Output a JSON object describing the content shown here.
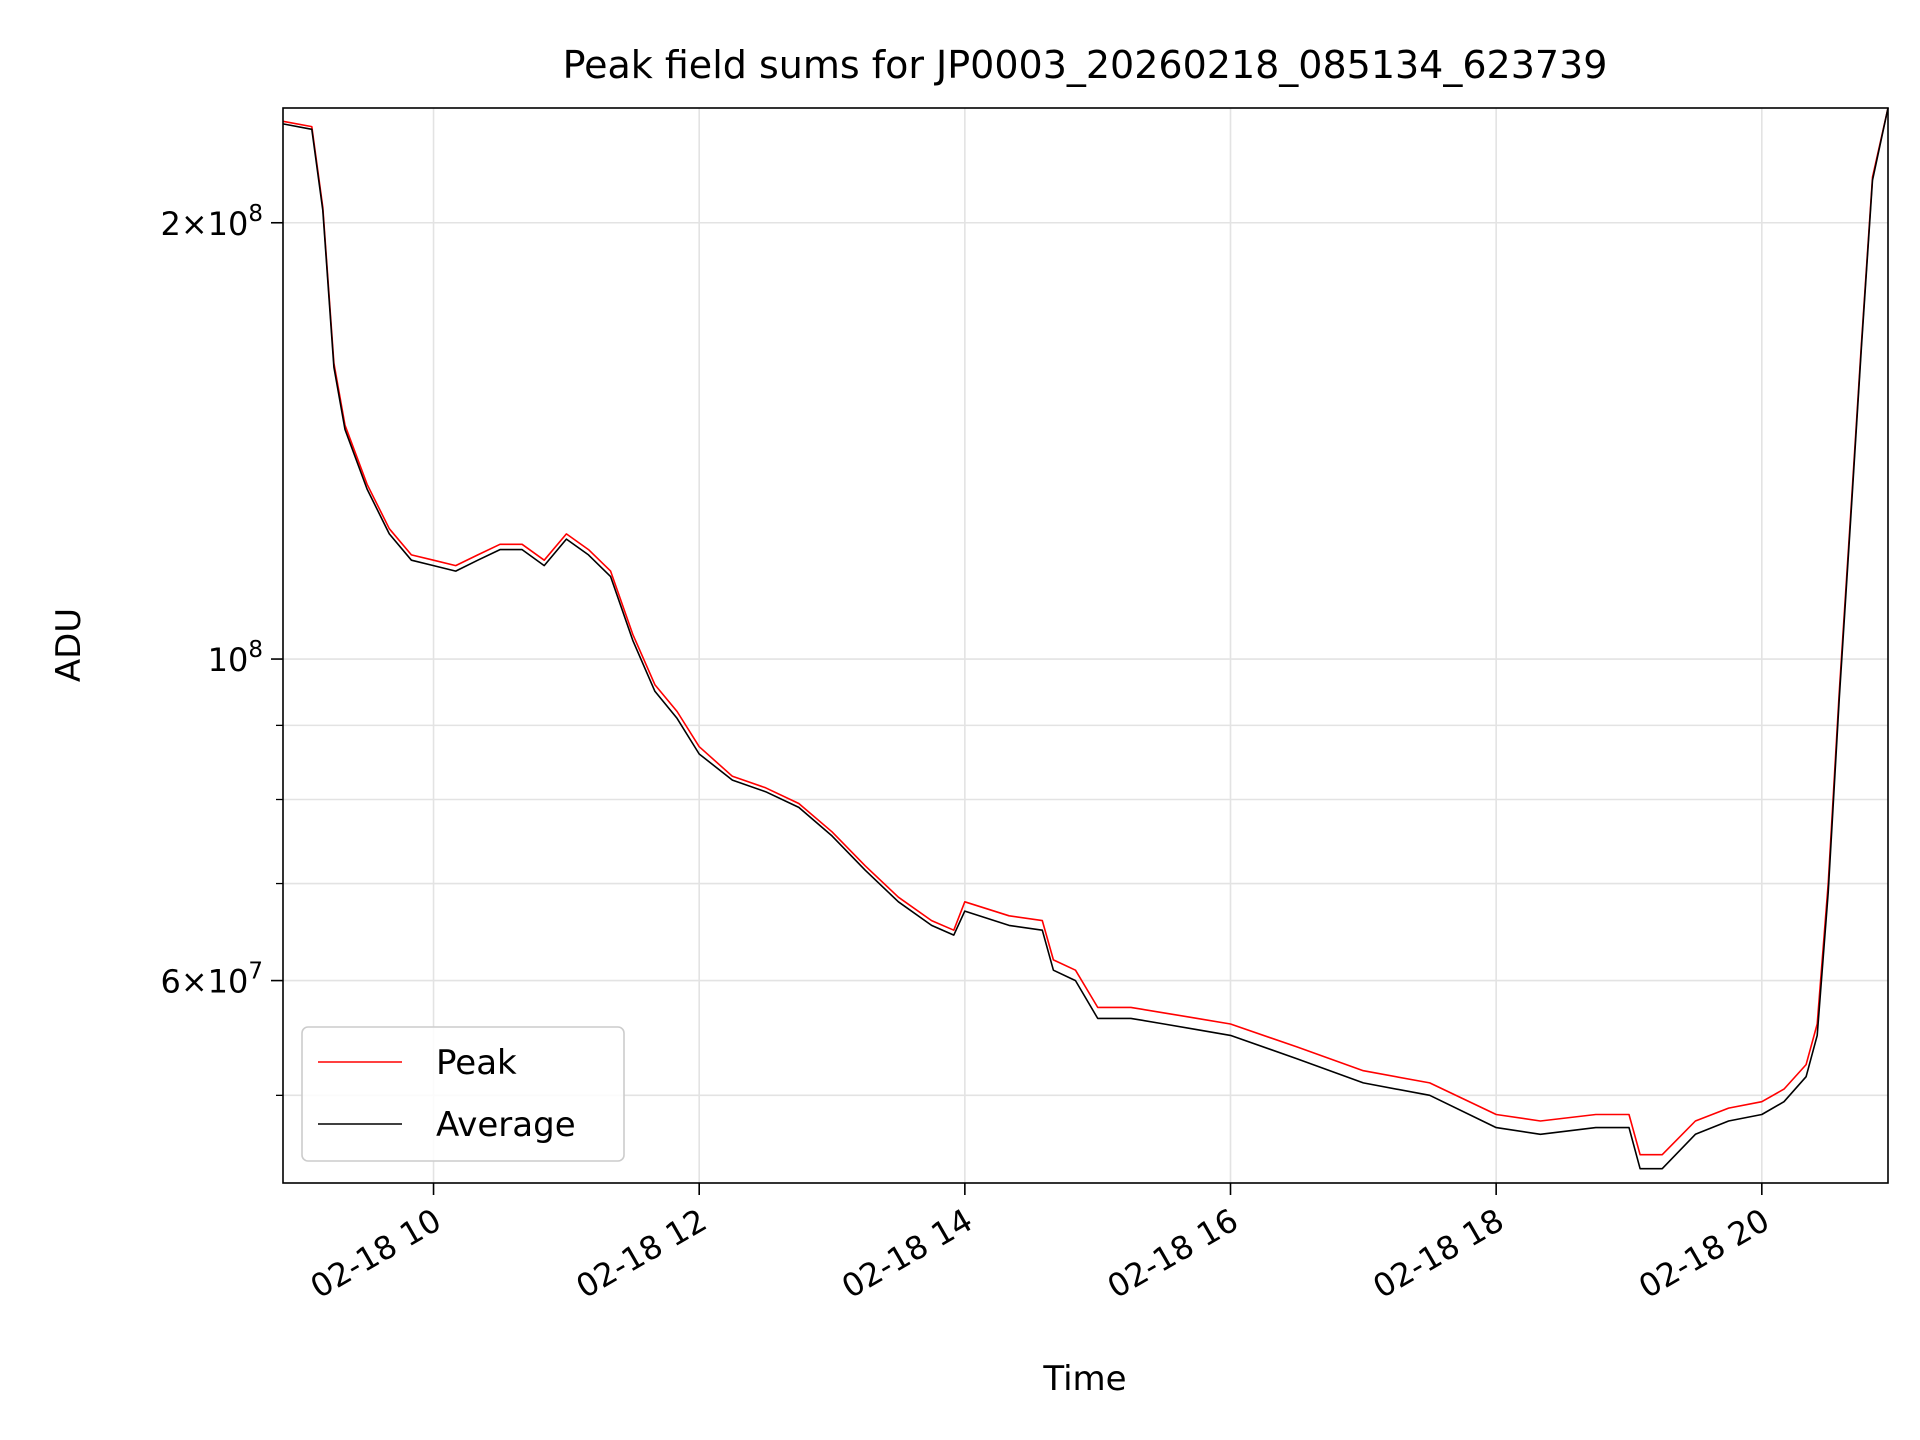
{
  "chart_data": {
    "type": "line",
    "title": "Peak field sums for JP0003_20260218_085134_623739",
    "xlabel": "Time",
    "ylabel": "ADU",
    "yscale": "log",
    "xlim": [
      "2026-02-18 08:52",
      "2026-02-18 20:57"
    ],
    "ylim": [
      43500000,
      240000000
    ],
    "grid": true,
    "legend_position": "lower-left",
    "x_ticks": [
      {
        "t": "2026-02-18 10:00",
        "label": "02-18 10"
      },
      {
        "t": "2026-02-18 12:00",
        "label": "02-18 12"
      },
      {
        "t": "2026-02-18 14:00",
        "label": "02-18 14"
      },
      {
        "t": "2026-02-18 16:00",
        "label": "02-18 16"
      },
      {
        "t": "2026-02-18 18:00",
        "label": "02-18 18"
      },
      {
        "t": "2026-02-18 20:00",
        "label": "02-18 20"
      }
    ],
    "y_ticks": [
      {
        "value": 200000000,
        "mantissa": "2",
        "exponent": "8"
      },
      {
        "value": 100000000,
        "mantissa": "",
        "exponent": "8"
      },
      {
        "value": 60000000,
        "mantissa": "6",
        "exponent": "7"
      }
    ],
    "y_minor_ticks": [
      50000000,
      70000000,
      80000000,
      90000000
    ],
    "x": [
      "2026-02-18 08:52",
      "2026-02-18 09:05",
      "2026-02-18 09:10",
      "2026-02-18 09:15",
      "2026-02-18 09:20",
      "2026-02-18 09:30",
      "2026-02-18 09:40",
      "2026-02-18 09:50",
      "2026-02-18 10:00",
      "2026-02-18 10:10",
      "2026-02-18 10:20",
      "2026-02-18 10:30",
      "2026-02-18 10:40",
      "2026-02-18 10:50",
      "2026-02-18 11:00",
      "2026-02-18 11:10",
      "2026-02-18 11:20",
      "2026-02-18 11:30",
      "2026-02-18 11:40",
      "2026-02-18 11:50",
      "2026-02-18 12:00",
      "2026-02-18 12:15",
      "2026-02-18 12:30",
      "2026-02-18 12:45",
      "2026-02-18 13:00",
      "2026-02-18 13:15",
      "2026-02-18 13:30",
      "2026-02-18 13:45",
      "2026-02-18 13:55",
      "2026-02-18 14:00",
      "2026-02-18 14:20",
      "2026-02-18 14:35",
      "2026-02-18 14:40",
      "2026-02-18 14:50",
      "2026-02-18 15:00",
      "2026-02-18 15:15",
      "2026-02-18 15:30",
      "2026-02-18 15:45",
      "2026-02-18 16:00",
      "2026-02-18 16:30",
      "2026-02-18 17:00",
      "2026-02-18 17:30",
      "2026-02-18 18:00",
      "2026-02-18 18:20",
      "2026-02-18 18:45",
      "2026-02-18 19:00",
      "2026-02-18 19:05",
      "2026-02-18 19:15",
      "2026-02-18 19:30",
      "2026-02-18 19:45",
      "2026-02-18 20:00",
      "2026-02-18 20:10",
      "2026-02-18 20:20",
      "2026-02-18 20:25",
      "2026-02-18 20:30",
      "2026-02-18 20:35",
      "2026-02-18 20:40",
      "2026-02-18 20:45",
      "2026-02-18 20:50",
      "2026-02-18 20:57"
    ],
    "series": [
      {
        "name": "Peak",
        "color": "#ff0000",
        "values": [
          235000000,
          233000000,
          205000000,
          160000000,
          145000000,
          132000000,
          123000000,
          118000000,
          117000000,
          116000000,
          118000000,
          120000000,
          120000000,
          117000000,
          122000000,
          119000000,
          115000000,
          104000000,
          96000000,
          92000000,
          87000000,
          83000000,
          81500000,
          79500000,
          76000000,
          72000000,
          68500000,
          66000000,
          65000000,
          68000000,
          66500000,
          66000000,
          62000000,
          61000000,
          57500000,
          57500000,
          57000000,
          56500000,
          56000000,
          54000000,
          52000000,
          51000000,
          48500000,
          48000000,
          48500000,
          48500000,
          45500000,
          45500000,
          48000000,
          49000000,
          49500000,
          50500000,
          52500000,
          56000000,
          70000000,
          95000000,
          125000000,
          165000000,
          215000000,
          245000000
        ]
      },
      {
        "name": "Average",
        "color": "#000000",
        "values": [
          234000000,
          232000000,
          204000000,
          159000000,
          144000000,
          131000000,
          122000000,
          117000000,
          116000000,
          115000000,
          117000000,
          119000000,
          119000000,
          116000000,
          121000000,
          118000000,
          114000000,
          103000000,
          95000000,
          91000000,
          86000000,
          82500000,
          81000000,
          79000000,
          75500000,
          71500000,
          68000000,
          65500000,
          64500000,
          67000000,
          65500000,
          65000000,
          61000000,
          60000000,
          56500000,
          56500000,
          56000000,
          55500000,
          55000000,
          53000000,
          51000000,
          50000000,
          47500000,
          47000000,
          47500000,
          47500000,
          44500000,
          44500000,
          47000000,
          48000000,
          48500000,
          49500000,
          51500000,
          55000000,
          69000000,
          94000000,
          124000000,
          164000000,
          214000000,
          244000000
        ]
      }
    ]
  }
}
